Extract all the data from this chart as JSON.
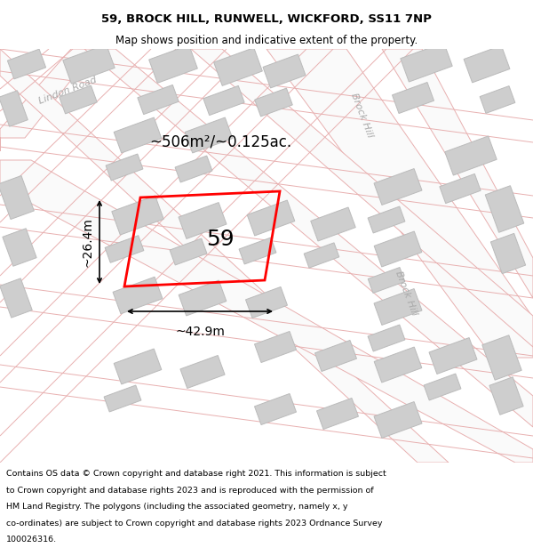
{
  "title_line1": "59, BROCK HILL, RUNWELL, WICKFORD, SS11 7NP",
  "title_line2": "Map shows position and indicative extent of the property.",
  "footer_lines": [
    "Contains OS data © Crown copyright and database right 2021. This information is subject",
    "to Crown copyright and database rights 2023 and is reproduced with the permission of",
    "HM Land Registry. The polygons (including the associated geometry, namely x, y",
    "co-ordinates) are subject to Crown copyright and database rights 2023 Ordnance Survey",
    "100026316."
  ],
  "map_bg": "#efedee",
  "road_line_color": "#e8b0b0",
  "building_fc": "#cecece",
  "building_ec": "#bbbbbb",
  "plot_ec": "#ff0000",
  "plot_label": "59",
  "area_label": "~506m²/~0.125ac.",
  "width_label": "~42.9m",
  "height_label": "~26.4m",
  "lindon_road_label": "Lindon Road",
  "brock_hill_label1": "Brock Hill",
  "brock_hill_label2": "Brock Hill",
  "title_fs": 9.5,
  "subtitle_fs": 8.5,
  "footer_fs": 6.8,
  "plot_label_fs": 18,
  "area_label_fs": 12,
  "dim_label_fs": 10,
  "road_label_fs": 8
}
